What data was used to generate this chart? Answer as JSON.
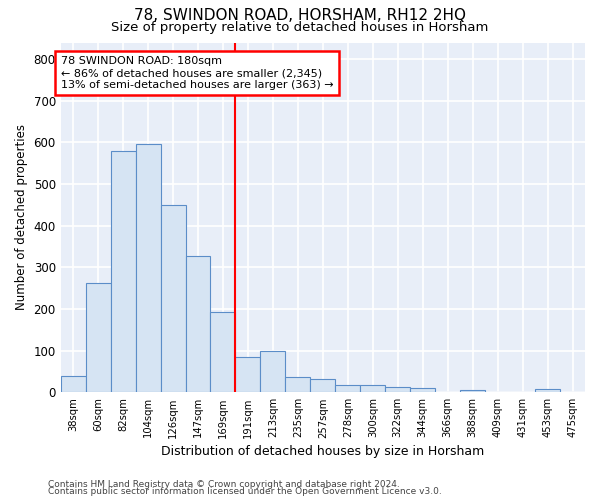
{
  "title1": "78, SWINDON ROAD, HORSHAM, RH12 2HQ",
  "title2": "Size of property relative to detached houses in Horsham",
  "xlabel": "Distribution of detached houses by size in Horsham",
  "ylabel": "Number of detached properties",
  "categories": [
    "38sqm",
    "60sqm",
    "82sqm",
    "104sqm",
    "126sqm",
    "147sqm",
    "169sqm",
    "191sqm",
    "213sqm",
    "235sqm",
    "257sqm",
    "278sqm",
    "300sqm",
    "322sqm",
    "344sqm",
    "366sqm",
    "388sqm",
    "409sqm",
    "431sqm",
    "453sqm",
    "475sqm"
  ],
  "values": [
    38,
    262,
    580,
    597,
    450,
    328,
    193,
    85,
    100,
    37,
    32,
    18,
    17,
    13,
    11,
    0,
    6,
    0,
    0,
    8,
    0
  ],
  "bar_color": "#d6e4f3",
  "bar_edge_color": "#5b8dc8",
  "annotation_line1": "78 SWINDON ROAD: 180sqm",
  "annotation_line2": "← 86% of detached houses are smaller (2,345)",
  "annotation_line3": "13% of semi-detached houses are larger (363) →",
  "annotation_box_color": "white",
  "annotation_box_edge_color": "red",
  "vline_color": "red",
  "vline_x": 7.0,
  "ylim": [
    0,
    840
  ],
  "yticks": [
    0,
    100,
    200,
    300,
    400,
    500,
    600,
    700,
    800
  ],
  "background_color": "#e8eef8",
  "grid_color": "white",
  "title1_fontsize": 11,
  "title2_fontsize": 9.5,
  "footer1": "Contains HM Land Registry data © Crown copyright and database right 2024.",
  "footer2": "Contains public sector information licensed under the Open Government Licence v3.0.",
  "footer_fontsize": 6.5
}
